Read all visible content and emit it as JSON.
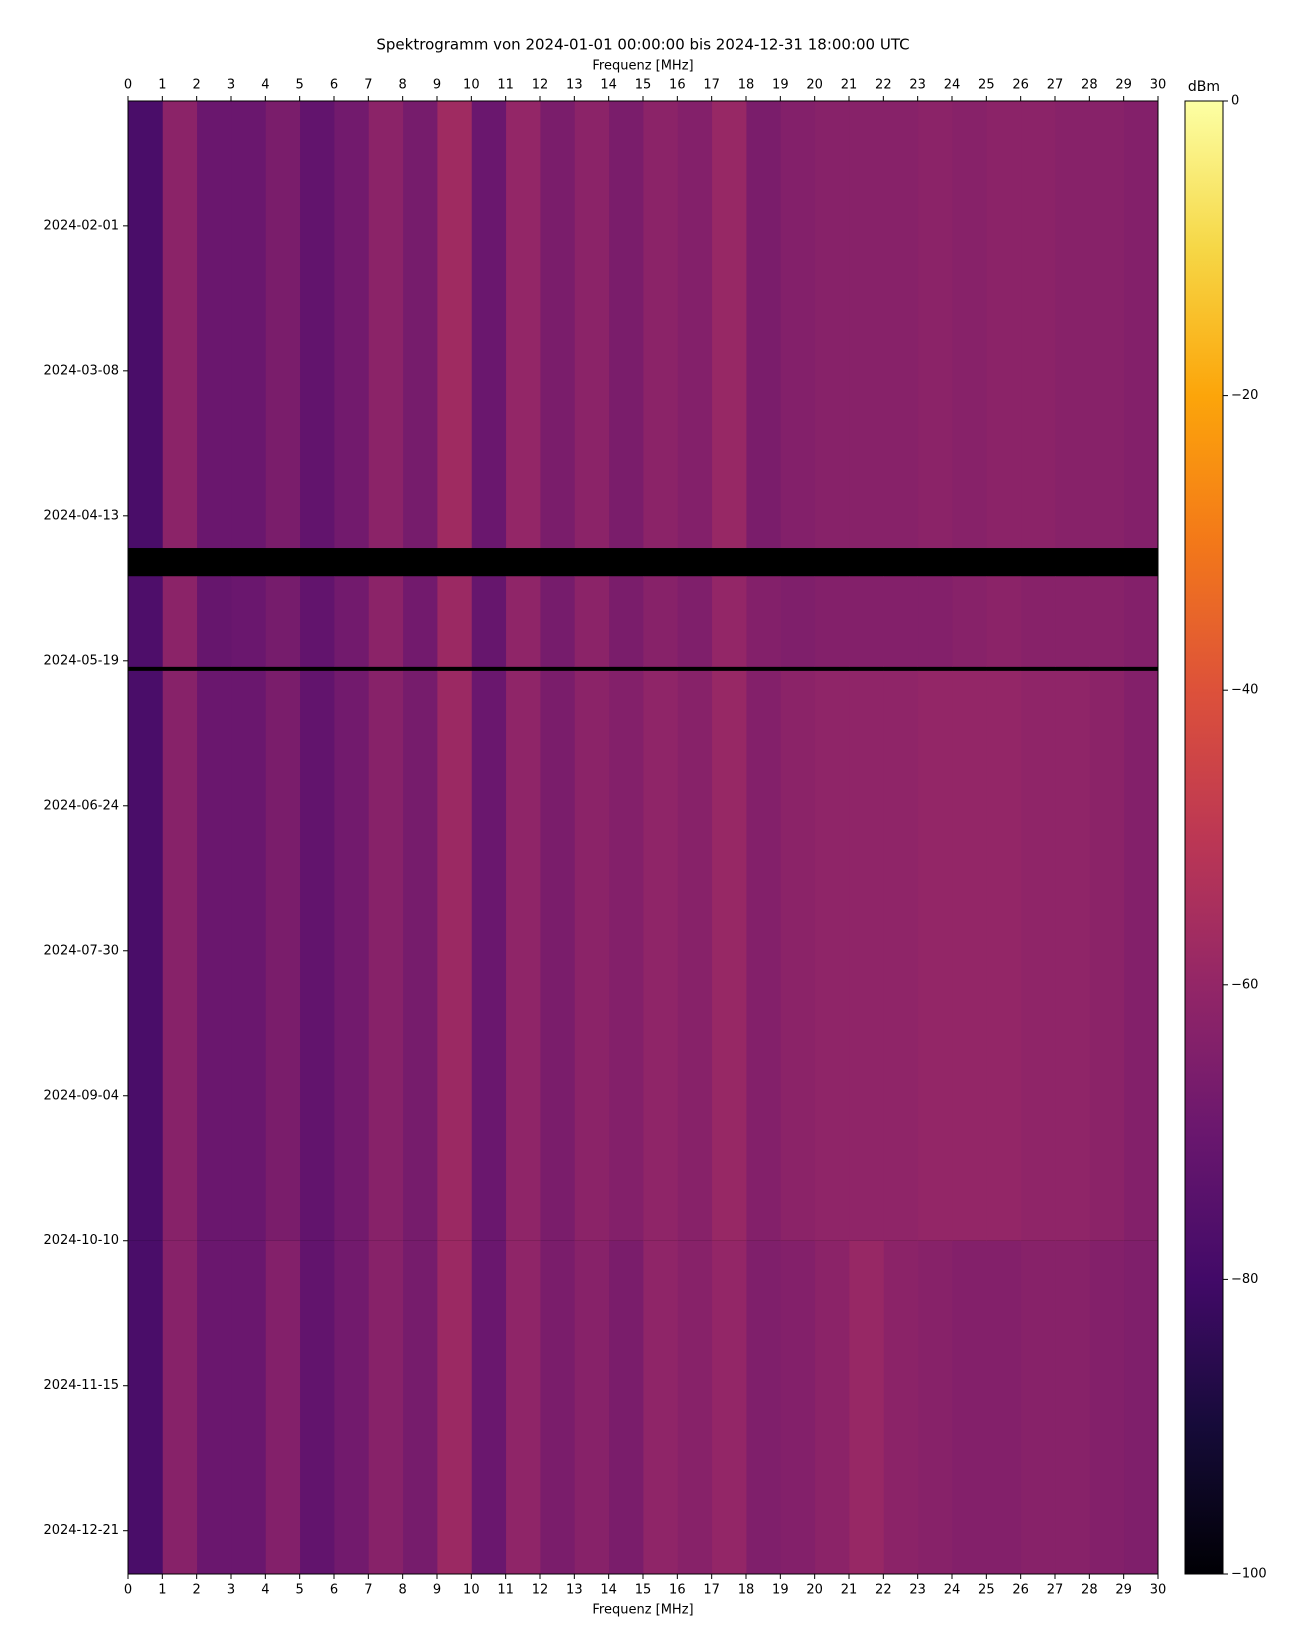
{
  "chart_data": {
    "type": "spectrogram",
    "title": "Spektrogramm von 2024-01-01 00:00:00 bis 2024-12-31 18:00:00 UTC",
    "xlabel": "Frequenz [MHz]",
    "xlim": [
      0,
      30
    ],
    "xticks": [
      0,
      1,
      2,
      3,
      4,
      5,
      6,
      7,
      8,
      9,
      10,
      11,
      12,
      13,
      14,
      15,
      16,
      17,
      18,
      19,
      20,
      21,
      22,
      23,
      24,
      25,
      26,
      27,
      28,
      29,
      30
    ],
    "ylim": [
      "2024-01-01 00:00:00",
      "2024-12-31 18:00:00"
    ],
    "yticks": [
      "2024-02-01",
      "2024-03-08",
      "2024-04-13",
      "2024-05-19",
      "2024-06-24",
      "2024-07-30",
      "2024-09-04",
      "2024-10-10",
      "2024-11-15",
      "2024-12-21"
    ],
    "x_edges": [
      0,
      1,
      2,
      3,
      4,
      5,
      6,
      7,
      8,
      9,
      10,
      11,
      12,
      13,
      14,
      15,
      16,
      17,
      18,
      19,
      20,
      21,
      22,
      23,
      24,
      25,
      26,
      27,
      28,
      29,
      30
    ],
    "y_edges": [
      "2024-01-01 00:00:00",
      "2024-04-21 00:00:00",
      "2024-04-28 00:00:00",
      "2024-05-20 12:00:00",
      "2024-05-21 12:00:00",
      "2024-10-10 00:00:00",
      "2024-12-31 18:00:00"
    ],
    "z": [
      [
        -78,
        -62,
        -70,
        -70,
        -66,
        -72,
        -68,
        -62,
        -67,
        -57,
        -70,
        -60,
        -66,
        -62,
        -66,
        -62,
        -64,
        -59,
        -66,
        -64,
        -63,
        -63,
        -63,
        -62,
        -63,
        -62,
        -62,
        -63,
        -63,
        -64
      ],
      [
        null,
        null,
        null,
        null,
        null,
        null,
        null,
        null,
        null,
        null,
        null,
        null,
        null,
        null,
        null,
        null,
        null,
        null,
        null,
        null,
        null,
        null,
        null,
        null,
        null,
        null,
        null,
        null,
        null,
        null
      ],
      [
        -77,
        -62,
        -71,
        -70,
        -67,
        -72,
        -68,
        -62,
        -68,
        -58,
        -71,
        -61,
        -67,
        -62,
        -66,
        -63,
        -65,
        -60,
        -64,
        -65,
        -64,
        -64,
        -64,
        -64,
        -63,
        -62,
        -63,
        -63,
        -63,
        -64
      ],
      [
        null,
        null,
        null,
        null,
        null,
        null,
        null,
        null,
        null,
        null,
        null,
        null,
        null,
        null,
        null,
        null,
        null,
        null,
        null,
        null,
        null,
        null,
        null,
        null,
        null,
        null,
        null,
        null,
        null,
        null
      ],
      [
        -78,
        -63,
        -70,
        -70,
        -66,
        -72,
        -68,
        -63,
        -67,
        -58,
        -70,
        -61,
        -66,
        -62,
        -64,
        -61,
        -63,
        -59,
        -64,
        -62,
        -61,
        -61,
        -61,
        -60,
        -60,
        -60,
        -61,
        -61,
        -62,
        -64
      ],
      [
        -78,
        -63,
        -70,
        -70,
        -64,
        -72,
        -68,
        -63,
        -67,
        -58,
        -70,
        -61,
        -66,
        -63,
        -66,
        -61,
        -63,
        -60,
        -65,
        -64,
        -62,
        -59,
        -62,
        -63,
        -64,
        -64,
        -63,
        -63,
        -64,
        -65
      ]
    ],
    "colorbar_label": "dBm",
    "clim": [
      -100,
      0
    ],
    "cticks": [
      {
        "value": -100,
        "label": "−100"
      },
      {
        "value": -80,
        "label": "−80"
      },
      {
        "value": -60,
        "label": "−60"
      },
      {
        "value": -40,
        "label": "−40"
      },
      {
        "value": -20,
        "label": "−20"
      },
      0
    ],
    "colormap": "inferno"
  }
}
